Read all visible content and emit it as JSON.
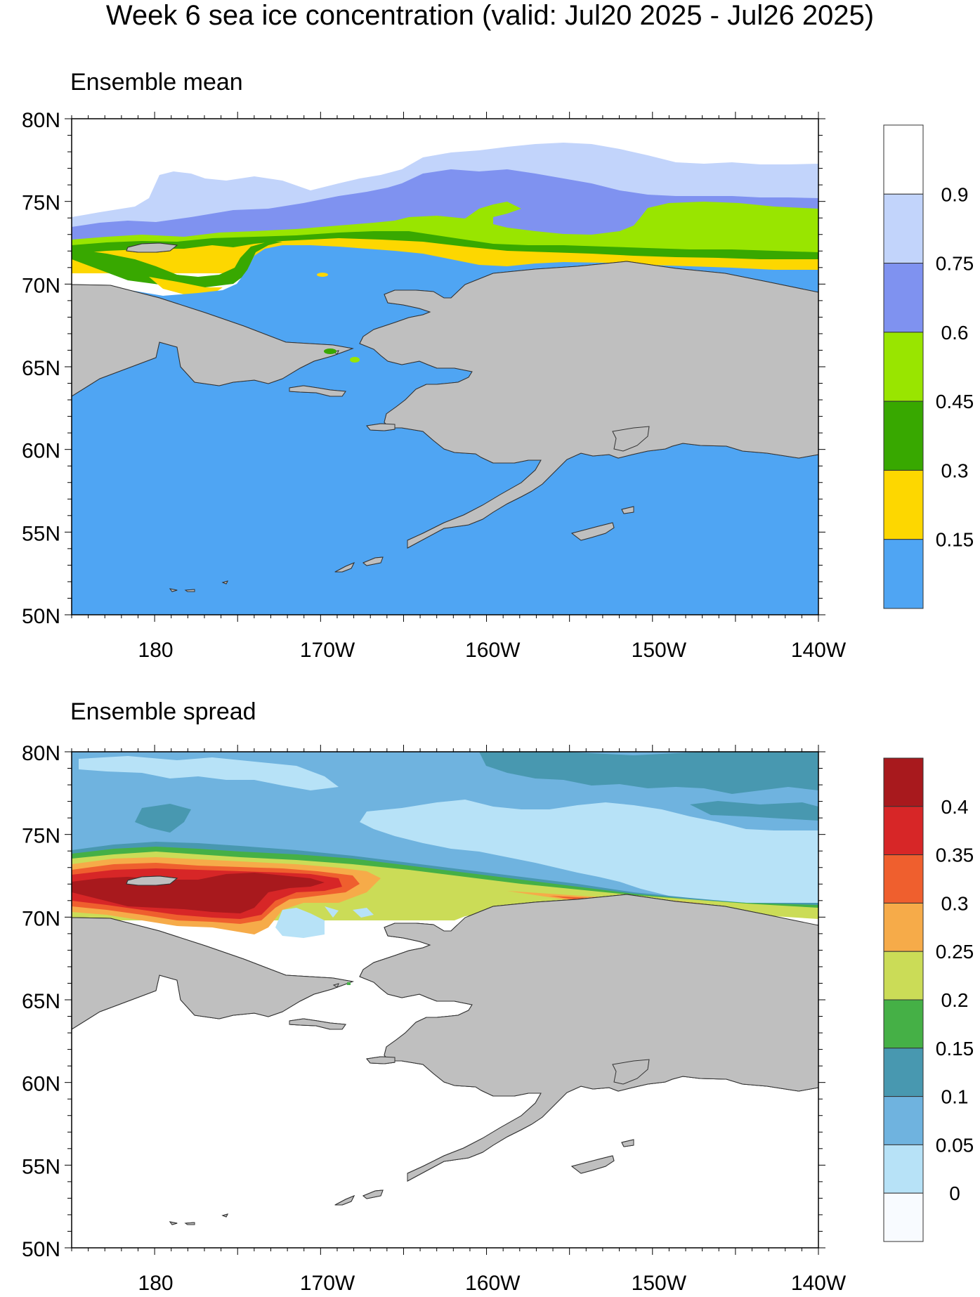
{
  "title": "Week 6 sea ice concentration (valid: Jul20 2025 - Jul26 2025)",
  "panels": [
    {
      "id": "mean",
      "title": "Ensemble mean",
      "lat_labels": [
        "80N",
        "75N",
        "70N",
        "65N",
        "60N",
        "55N",
        "50N"
      ],
      "lon_labels": [
        "180",
        "170W",
        "160W",
        "150W",
        "140W"
      ],
      "colorbar": {
        "colors": [
          "#ffffff",
          "#c2d4fb",
          "#7f92f0",
          "#99e500",
          "#38a800",
          "#fdd700",
          "#4fa5f3"
        ],
        "labels": [
          "0.9",
          "0.75",
          "0.6",
          "0.45",
          "0.3",
          "0.15"
        ]
      }
    },
    {
      "id": "spread",
      "title": "Ensemble spread",
      "lat_labels": [
        "80N",
        "75N",
        "70N",
        "65N",
        "60N",
        "55N",
        "50N"
      ],
      "lon_labels": [
        "180",
        "170W",
        "160W",
        "150W",
        "140W"
      ],
      "colorbar": {
        "colors": [
          "#a8191d",
          "#d72627",
          "#ef5f2e",
          "#f6ab49",
          "#cbdc57",
          "#45b046",
          "#4898b0",
          "#6fb3df",
          "#b7e2f7",
          "#f8fbff"
        ],
        "labels": [
          "0.4",
          "0.35",
          "0.3",
          "0.25",
          "0.2",
          "0.15",
          "0.1",
          "0.05",
          "0"
        ]
      }
    }
  ],
  "colors": {
    "land": "#bfbfbf",
    "open_water_mean": "#4fa5f3"
  }
}
